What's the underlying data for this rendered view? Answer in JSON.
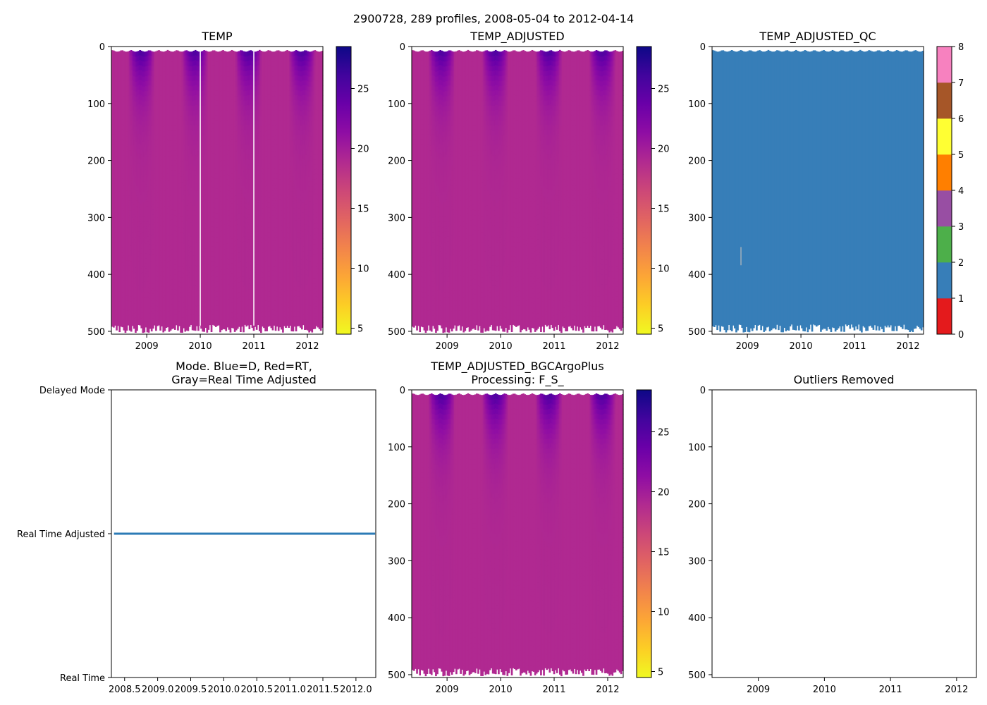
{
  "figure_title": "2900728, 289 profiles, 2008-05-04 to 2012-04-14",
  "colors": {
    "plasma": [
      "#0d0887",
      "#41049d",
      "#6a00a8",
      "#8f0da4",
      "#b12a90",
      "#cc4778",
      "#e16462",
      "#f2844b",
      "#fca636",
      "#fcce25",
      "#f0f921"
    ],
    "qc": [
      "#e41a1c",
      "#377eb8",
      "#4daf4a",
      "#984ea3",
      "#ff7f00",
      "#ffff33",
      "#a65628",
      "#f781bf",
      "#999999"
    ],
    "mode_line": "#2c7bb6"
  },
  "chart_data": [
    {
      "id": "temp",
      "type": "heatmap",
      "title": "TEMP",
      "xlim": [
        2008.34,
        2012.29
      ],
      "ylim": [
        505,
        0
      ],
      "xticks": [
        2009,
        2010,
        2011,
        2012
      ],
      "xtick_labels": [
        "2009",
        "2010",
        "2011",
        "2012"
      ],
      "yticks": [
        0,
        100,
        200,
        300,
        400,
        500
      ],
      "ytick_labels": [
        "0",
        "100",
        "200",
        "300",
        "400",
        "500"
      ],
      "colorbar": {
        "range": [
          4.5,
          28.5
        ],
        "ticks": [
          5,
          10,
          15,
          20,
          25
        ],
        "tick_labels": [
          "5",
          "10",
          "15",
          "20",
          "25"
        ]
      },
      "gaps": [
        2010.0,
        2011.0
      ]
    },
    {
      "id": "temp_adjusted",
      "type": "heatmap",
      "title": "TEMP_ADJUSTED",
      "xlim": [
        2008.34,
        2012.29
      ],
      "ylim": [
        505,
        0
      ],
      "xticks": [
        2009,
        2010,
        2011,
        2012
      ],
      "xtick_labels": [
        "2009",
        "2010",
        "2011",
        "2012"
      ],
      "yticks": [
        0,
        100,
        200,
        300,
        400,
        500
      ],
      "ytick_labels": [
        "0",
        "100",
        "200",
        "300",
        "400",
        "500"
      ],
      "colorbar": {
        "range": [
          4.5,
          28.5
        ],
        "ticks": [
          5,
          10,
          15,
          20,
          25
        ],
        "tick_labels": [
          "5",
          "10",
          "15",
          "20",
          "25"
        ]
      },
      "gaps": []
    },
    {
      "id": "temp_adjusted_qc",
      "type": "heatmap",
      "title": "TEMP_ADJUSTED_QC",
      "xlim": [
        2008.34,
        2012.29
      ],
      "ylim": [
        505,
        0
      ],
      "xticks": [
        2009,
        2010,
        2011,
        2012
      ],
      "xtick_labels": [
        "2009",
        "2010",
        "2011",
        "2012"
      ],
      "yticks": [
        0,
        100,
        200,
        300,
        400,
        500
      ],
      "ytick_labels": [
        "0",
        "100",
        "200",
        "300",
        "400",
        "500"
      ],
      "fill_qc_flag": 1,
      "colorbar": {
        "range": [
          0,
          8
        ],
        "ticks": [
          0,
          1,
          2,
          3,
          4,
          5,
          6,
          7,
          8
        ],
        "tick_labels": [
          "0",
          "1",
          "2",
          "3",
          "4",
          "5",
          "6",
          "7",
          "8"
        ]
      }
    },
    {
      "id": "mode",
      "type": "line",
      "title": "Mode. Blue=D, Red=RT,\nGray=Real Time Adjusted",
      "xlim": [
        2008.3,
        2012.3
      ],
      "xticks": [
        2008.5,
        2009.0,
        2009.5,
        2010.0,
        2010.5,
        2011.0,
        2011.5,
        2012.0
      ],
      "xtick_labels": [
        "2008.5",
        "2009.0",
        "2009.5",
        "2010.0",
        "2010.5",
        "2011.0",
        "2011.5",
        "2012.0"
      ],
      "ylim": [
        0,
        2
      ],
      "yticks": [
        2,
        1,
        0
      ],
      "ytick_labels": [
        "Delayed Mode",
        "Real Time Adjusted",
        "Real Time"
      ],
      "series": [
        {
          "name": "mode",
          "x": [
            2008.34,
            2012.29
          ],
          "values": [
            1,
            1
          ]
        }
      ]
    },
    {
      "id": "bgc",
      "type": "heatmap",
      "title": "TEMP_ADJUSTED_BGCArgoPlus\nProcessing: F_S_",
      "xlim": [
        2008.34,
        2012.29
      ],
      "ylim": [
        505,
        0
      ],
      "xticks": [
        2009,
        2010,
        2011,
        2012
      ],
      "xtick_labels": [
        "2009",
        "2010",
        "2011",
        "2012"
      ],
      "yticks": [
        0,
        100,
        200,
        300,
        400,
        500
      ],
      "ytick_labels": [
        "0",
        "100",
        "200",
        "300",
        "400",
        "500"
      ],
      "colorbar": {
        "range": [
          4.5,
          28.5
        ],
        "ticks": [
          5,
          10,
          15,
          20,
          25
        ],
        "tick_labels": [
          "5",
          "10",
          "15",
          "20",
          "25"
        ]
      },
      "gaps": []
    },
    {
      "id": "outliers",
      "type": "scatter",
      "title": "Outliers Removed",
      "xlim": [
        2008.3,
        2012.3
      ],
      "ylim": [
        505,
        0
      ],
      "xticks": [
        2009,
        2010,
        2011,
        2012
      ],
      "xtick_labels": [
        "2009",
        "2010",
        "2011",
        "2012"
      ],
      "yticks": [
        0,
        100,
        200,
        300,
        400,
        500
      ],
      "ytick_labels": [
        "0",
        "100",
        "200",
        "300",
        "400",
        "500"
      ],
      "points": []
    }
  ]
}
